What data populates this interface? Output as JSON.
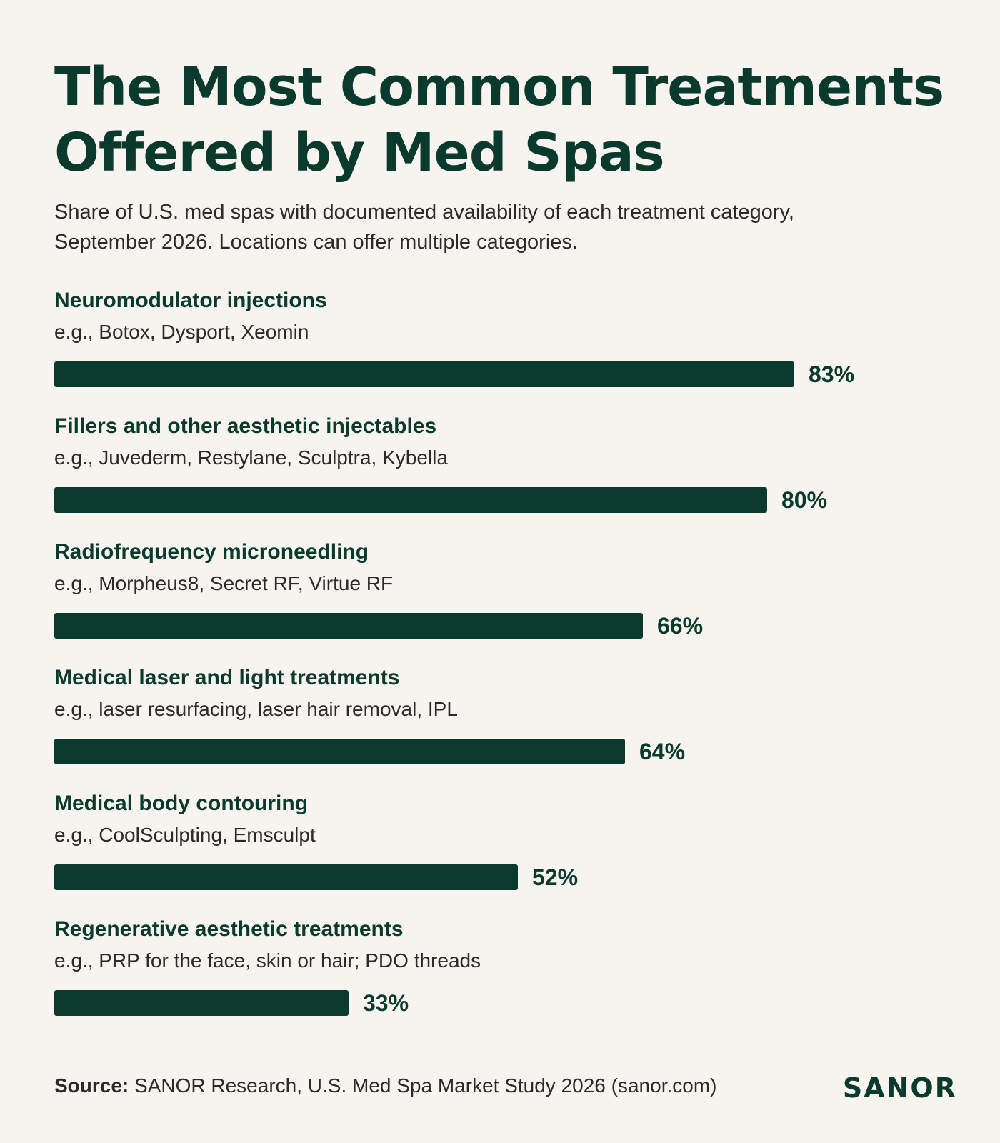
{
  "header": {
    "title_line1": "The Most Common Treatments",
    "title_line2": "Offered by Med Spas",
    "subtitle_line1": "Share of U.S. med spas with documented availability of each treatment category,",
    "subtitle_line2": "September 2026. Locations can offer multiple categories."
  },
  "chart_data": {
    "type": "bar",
    "orientation": "horizontal",
    "categories": [
      "Neuromodulator injections",
      "Fillers and other aesthetic injectables",
      "Radiofrequency microneedling",
      "Medical laser and light treatments",
      "Medical body contouring",
      "Regenerative aesthetic treatments"
    ],
    "descriptions": [
      "e.g., Botox, Dysport, Xeomin",
      "e.g., Juvederm, Restylane, Sculptra, Kybella",
      "e.g., Morpheus8, Secret RF, Virtue RF",
      "e.g., laser resurfacing, laser hair removal, IPL",
      "e.g., CoolSculpting, Emsculpt",
      "e.g., PRP for the face, skin or hair; PDO threads"
    ],
    "values": [
      83,
      80,
      66,
      64,
      52,
      33
    ],
    "value_labels": [
      "83%",
      "80%",
      "66%",
      "64%",
      "52%",
      "33%"
    ],
    "unit": "%",
    "xlim": [
      0,
      100
    ],
    "grid": false,
    "bar_color": "#0a3a2e"
  },
  "footer": {
    "source_label": "Source:",
    "source_text": " SANOR Research, U.S. Med Spa Market Study 2026 (sanor.com)",
    "logo": "SANOR"
  }
}
